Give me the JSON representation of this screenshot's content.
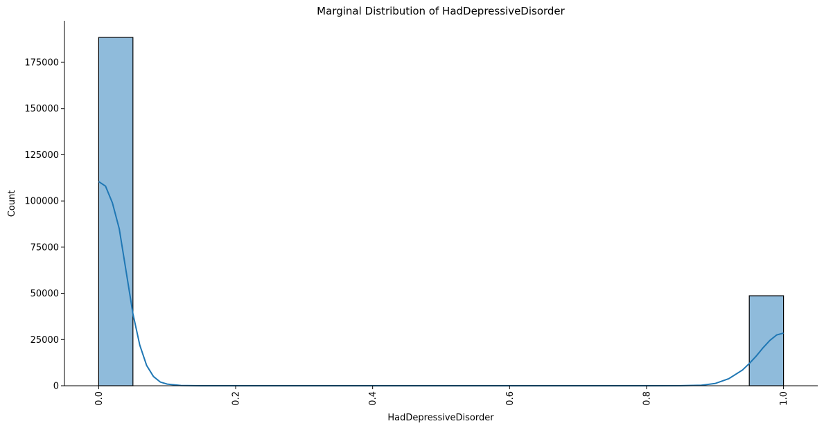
{
  "chart_data": {
    "type": "bar",
    "title": "Marginal Distribution of HadDepressiveDisorder",
    "xlabel": "HadDepressiveDisorder",
    "ylabel": "Count",
    "xlim": [
      -0.05,
      1.05
    ],
    "ylim": [
      0,
      197500
    ],
    "x_ticks": [
      "0.0",
      "0.2",
      "0.4",
      "0.6",
      "0.8",
      "1.0"
    ],
    "y_ticks": [
      "0",
      "25000",
      "50000",
      "75000",
      "100000",
      "125000",
      "150000",
      "175000"
    ],
    "bins": [
      {
        "x0": 0.0,
        "x1": 0.05,
        "count": 188500
      },
      {
        "x0": 0.95,
        "x1": 1.0,
        "count": 48700
      }
    ],
    "kde": {
      "x": [
        0.0,
        0.01,
        0.02,
        0.03,
        0.04,
        0.05,
        0.06,
        0.07,
        0.08,
        0.09,
        0.1,
        0.12,
        0.15,
        0.2,
        0.4,
        0.6,
        0.8,
        0.85,
        0.88,
        0.9,
        0.92,
        0.94,
        0.95,
        0.96,
        0.97,
        0.98,
        0.99,
        1.0
      ],
      "y": [
        110500,
        108000,
        99000,
        85000,
        62000,
        39000,
        22000,
        11000,
        5000,
        2000,
        900,
        150,
        20,
        0,
        0,
        0,
        0,
        30,
        300,
        1200,
        3800,
        8500,
        12000,
        16000,
        20500,
        24500,
        27500,
        28500
      ]
    },
    "bar_color": "#8fbbdb",
    "bar_edge_color": "#000000",
    "kde_color": "#1f77b4",
    "grid": false,
    "x_tick_rotation": "vertical"
  }
}
